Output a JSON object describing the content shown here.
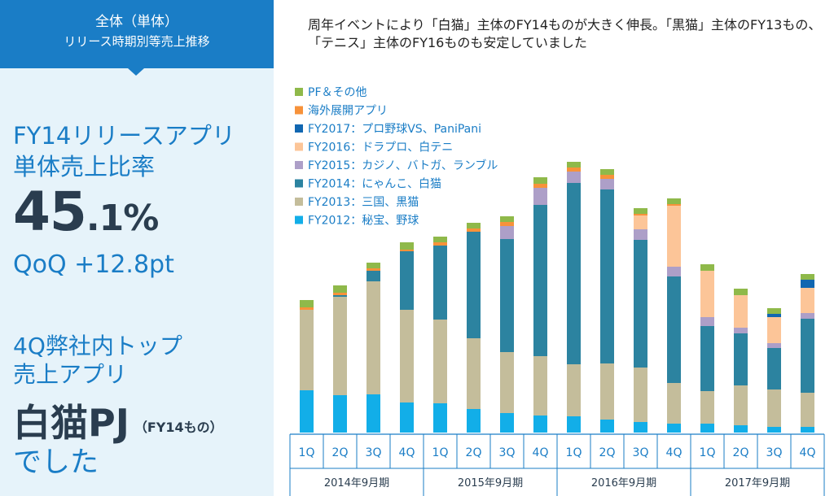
{
  "left_header": {
    "line1": "全体（単体）",
    "line2": "リリース時期別等売上推移"
  },
  "kpi": {
    "title_line1": "FY14リリースアプリ",
    "title_line2": "単体売上比率",
    "value_int": "45",
    "value_dec": ".1%",
    "qoq": "QoQ +12.8pt",
    "top_line1": "4Q弊社内トップ",
    "top_line2": "売上アプリ",
    "top_app": "白猫PJ",
    "top_app_note": "（FY14もの）",
    "closing": "でした"
  },
  "headline": "周年イベントにより「白猫」主体のFY14ものが大きく伸長。「黒猫」主体のFY13もの、「テニス」主体のFY16ものも安定していました",
  "chart_data": {
    "type": "bar",
    "stacked": true,
    "title": "",
    "xlabel": "",
    "ylabel": "",
    "categories": [
      "1Q",
      "2Q",
      "3Q",
      "4Q",
      "1Q",
      "2Q",
      "3Q",
      "4Q",
      "1Q",
      "2Q",
      "3Q",
      "4Q",
      "1Q",
      "2Q",
      "3Q",
      "4Q"
    ],
    "fiscal_groups": [
      {
        "label": "2014年9月期",
        "count": 4
      },
      {
        "label": "2015年9月期",
        "count": 4
      },
      {
        "label": "2016年9月期",
        "count": 4
      },
      {
        "label": "2017年9月期",
        "count": 4
      }
    ],
    "ylim": [
      0,
      345
    ],
    "legend_position": "top-left",
    "series": [
      {
        "name": "FY2012：秘宝、野球",
        "color": "#12aee8",
        "values": [
          52,
          46,
          47,
          37,
          36,
          29,
          24,
          21,
          20,
          16,
          13,
          11,
          11,
          9,
          7,
          7
        ]
      },
      {
        "name": "FY2013：三国、黒猫",
        "color": "#c4bd9b",
        "values": [
          99,
          121,
          139,
          114,
          103,
          87,
          75,
          73,
          64,
          69,
          67,
          50,
          40,
          49,
          46,
          42
        ]
      },
      {
        "name": "FY2014：にゃんこ、白猫",
        "color": "#2c83a0",
        "values": [
          0,
          2,
          13,
          72,
          91,
          131,
          139,
          186,
          223,
          214,
          157,
          131,
          80,
          64,
          51,
          91
        ]
      },
      {
        "name": "FY2015：カジノ、バトガ、ランブル",
        "color": "#ad9fc8",
        "values": [
          0,
          0,
          0,
          0,
          0,
          0,
          16,
          21,
          14,
          13,
          13,
          12,
          11,
          7,
          6,
          7
        ]
      },
      {
        "name": "FY2016：ドラプロ、白テニ",
        "color": "#fcc598",
        "values": [
          0,
          0,
          0,
          0,
          0,
          0,
          0,
          0,
          0,
          0,
          17,
          75,
          57,
          40,
          32,
          31
        ]
      },
      {
        "name": "FY2017：プロ野球VS、PaniPani",
        "color": "#1167b1",
        "values": [
          0,
          0,
          0,
          0,
          0,
          0,
          0,
          0,
          0,
          0,
          0,
          0,
          0,
          0,
          4,
          10
        ]
      },
      {
        "name": "海外展開アプリ",
        "color": "#f7923a",
        "values": [
          3,
          3,
          3,
          2,
          4,
          4,
          5,
          5,
          5,
          5,
          2,
          2,
          0,
          0,
          0,
          0
        ]
      },
      {
        "name": "PF＆その他",
        "color": "#8fb94a",
        "values": [
          9,
          9,
          7,
          9,
          7,
          7,
          7,
          8,
          7,
          7,
          7,
          7,
          8,
          8,
          7,
          7
        ]
      }
    ]
  }
}
